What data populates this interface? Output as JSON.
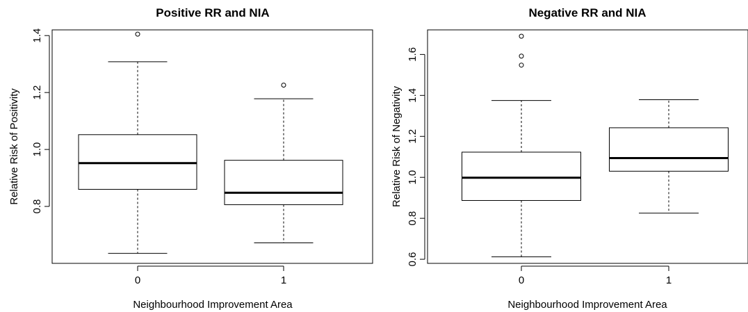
{
  "chart_data": [
    {
      "type": "boxplot",
      "title": "Positive RR and NIA",
      "xlabel": "Neighbourhood Improvement Area",
      "ylabel": "Relative Risk of Positivity",
      "categories": [
        "0",
        "1"
      ],
      "ylim": [
        0.6,
        1.42
      ],
      "yticks": [
        "0.8",
        "1.0",
        "1.2",
        "1.4"
      ],
      "ytick_values": [
        0.8,
        1.0,
        1.2,
        1.4
      ],
      "boxes": [
        {
          "category": "0",
          "whisker_low": 0.635,
          "q1": 0.86,
          "median": 0.952,
          "q3": 1.052,
          "whisker_high": 1.308,
          "outliers": [
            1.405
          ]
        },
        {
          "category": "1",
          "whisker_low": 0.672,
          "q1": 0.806,
          "median": 0.848,
          "q3": 0.962,
          "whisker_high": 1.178,
          "outliers": [
            1.226
          ]
        }
      ]
    },
    {
      "type": "boxplot",
      "title": "Negative RR and NIA",
      "xlabel": "Neighbourhood Improvement Area",
      "ylabel": "Relative Risk of Negativity",
      "categories": [
        "0",
        "1"
      ],
      "ylim": [
        0.58,
        1.72
      ],
      "yticks": [
        "0.6",
        "0.8",
        "1.0",
        "1.2",
        "1.4",
        "1.6"
      ],
      "ytick_values": [
        0.6,
        0.8,
        1.0,
        1.2,
        1.4,
        1.6
      ],
      "boxes": [
        {
          "category": "0",
          "whisker_low": 0.612,
          "q1": 0.887,
          "median": 0.998,
          "q3": 1.123,
          "whisker_high": 1.375,
          "outliers": [
            1.548,
            1.592,
            1.689
          ]
        },
        {
          "category": "1",
          "whisker_low": 0.825,
          "q1": 1.03,
          "median": 1.094,
          "q3": 1.242,
          "whisker_high": 1.379,
          "outliers": []
        }
      ]
    }
  ]
}
